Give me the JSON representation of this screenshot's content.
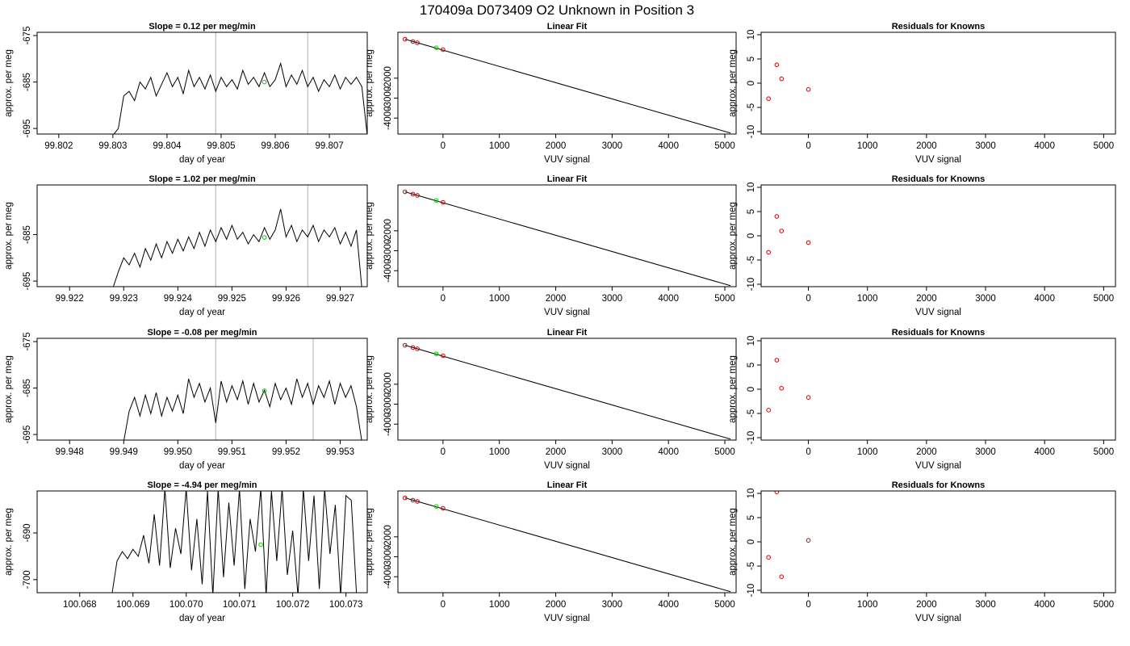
{
  "figure": {
    "title": "170409a      D073409   O2 Unknown in Position  3"
  },
  "chart_data": [
    {
      "type": "line",
      "panel": "time-series-1",
      "title": "Slope =  0.12  per meg/min",
      "xlabel": "day of year",
      "ylabel": "approx. per meg",
      "xlim": [
        99.8016,
        99.8077
      ],
      "ylim": [
        -696.2,
        -674.3
      ],
      "xticks": [
        99.802,
        99.803,
        99.804,
        99.805,
        99.806,
        99.807
      ],
      "xdecimals": 3,
      "yticks": [
        -695,
        -685,
        -675
      ],
      "vlines": [
        99.8049,
        99.8066
      ],
      "series": [
        {
          "x": [
            99.803,
            99.8031,
            99.8032,
            99.8033,
            99.8034,
            99.8035,
            99.8036,
            99.8037,
            99.8038,
            99.8039,
            99.804,
            99.8041,
            99.8042,
            99.8043,
            99.8044,
            99.8045,
            99.8046,
            99.8047,
            99.8048,
            99.8049,
            99.805,
            99.8051,
            99.8052,
            99.8053,
            99.8054,
            99.8055,
            99.8056,
            99.8057,
            99.8058,
            99.8059,
            99.806,
            99.8061,
            99.8062,
            99.8063,
            99.8064,
            99.8065,
            99.8066,
            99.8067,
            99.8068,
            99.8069,
            99.807,
            99.8071,
            99.8072,
            99.8073,
            99.8074,
            99.8075,
            99.8076,
            99.8077
          ],
          "y": [
            -696.5,
            -695.0,
            -688.0,
            -687.0,
            -689.0,
            -685.0,
            -686.5,
            -684.0,
            -688.0,
            -685.5,
            -683.0,
            -686.0,
            -684.0,
            -687.5,
            -682.5,
            -686.0,
            -684.0,
            -686.5,
            -683.5,
            -687.0,
            -684.0,
            -686.0,
            -684.5,
            -686.5,
            -682.5,
            -685.5,
            -684.0,
            -686.0,
            -683.0,
            -686.0,
            -684.5,
            -681.0,
            -686.0,
            -683.5,
            -685.5,
            -682.5,
            -686.0,
            -684.0,
            -687.0,
            -684.5,
            -686.0,
            -683.5,
            -686.5,
            -684.0,
            -685.5,
            -684.0,
            -686.0,
            -696.5
          ]
        }
      ],
      "marker": {
        "x": 99.8058,
        "y": -685.0
      }
    },
    {
      "type": "scatter",
      "panel": "linear-fit-1",
      "title": "Linear Fit",
      "xlabel": "VUV signal",
      "ylabel": "approx. per meg",
      "xlim": [
        -800,
        5200
      ],
      "ylim": [
        -4800,
        300
      ],
      "xticks": [
        0,
        1000,
        2000,
        3000,
        4000,
        5000
      ],
      "yticks": [
        -4000,
        -3000,
        -2000
      ],
      "fit_line": {
        "x": [
          -675,
          5100
        ],
        "y": [
          -45,
          -4750
        ]
      },
      "points": {
        "x": [
          -675,
          -535,
          -455,
          0
        ],
        "y": [
          -45,
          -162,
          -225,
          -570
        ]
      },
      "unknown": {
        "x": [
          -120
        ],
        "y": [
          -475
        ]
      }
    },
    {
      "type": "scatter",
      "panel": "residuals-1",
      "title": "Residuals for Knowns",
      "xlabel": "VUV signal",
      "ylabel": "approx. per meg",
      "xlim": [
        -800,
        5200
      ],
      "ylim": [
        -10.5,
        10.5
      ],
      "xticks": [
        0,
        1000,
        2000,
        3000,
        4000,
        5000
      ],
      "yticks": [
        -10,
        -5,
        0,
        5,
        10
      ],
      "points": {
        "x": [
          -675,
          -535,
          -455,
          0
        ],
        "y": [
          -3.2,
          3.8,
          0.9,
          -1.3
        ]
      }
    },
    {
      "type": "line",
      "panel": "time-series-2",
      "title": "Slope =  1.02  per meg/min",
      "xlabel": "day of year",
      "ylabel": "approx. per meg",
      "xlim": [
        99.9214,
        99.9275
      ],
      "ylim": [
        -696.2,
        -674.3
      ],
      "xticks": [
        99.922,
        99.923,
        99.924,
        99.925,
        99.926,
        99.927
      ],
      "xdecimals": 3,
      "yticks": [
        -695,
        -685
      ],
      "vlines": [
        99.9247,
        99.9264
      ],
      "series": [
        {
          "x": [
            99.9228,
            99.9229,
            99.923,
            99.9231,
            99.9232,
            99.9233,
            99.9234,
            99.9235,
            99.9236,
            99.9237,
            99.9238,
            99.9239,
            99.924,
            99.9241,
            99.9242,
            99.9243,
            99.9244,
            99.9245,
            99.9246,
            99.9247,
            99.9248,
            99.9249,
            99.925,
            99.9251,
            99.9252,
            99.9253,
            99.9254,
            99.9255,
            99.9256,
            99.9257,
            99.9258,
            99.9259,
            99.926,
            99.9261,
            99.9262,
            99.9263,
            99.9264,
            99.9265,
            99.9266,
            99.9267,
            99.9268,
            99.9269,
            99.927,
            99.9271,
            99.9272,
            99.9273,
            99.9274
          ],
          "y": [
            -696.5,
            -693.0,
            -690.0,
            -691.5,
            -689.0,
            -692.0,
            -688.0,
            -690.5,
            -687.0,
            -690.0,
            -686.5,
            -689.0,
            -686.0,
            -688.5,
            -685.5,
            -688.0,
            -684.5,
            -687.5,
            -684.0,
            -686.5,
            -683.5,
            -686.0,
            -683.0,
            -686.0,
            -684.5,
            -687.0,
            -685.0,
            -686.5,
            -683.5,
            -686.0,
            -684.0,
            -679.5,
            -685.5,
            -683.0,
            -686.5,
            -684.0,
            -685.5,
            -683.0,
            -686.5,
            -684.0,
            -685.5,
            -683.5,
            -687.0,
            -684.5,
            -687.5,
            -684.0,
            -696.5
          ]
        }
      ],
      "marker": {
        "x": 99.9256,
        "y": -685.6
      }
    },
    {
      "type": "scatter",
      "panel": "linear-fit-2",
      "title": "Linear Fit",
      "xlabel": "VUV signal",
      "ylabel": "approx. per meg",
      "xlim": [
        -800,
        5200
      ],
      "ylim": [
        -4800,
        300
      ],
      "xticks": [
        0,
        1000,
        2000,
        3000,
        4000,
        5000
      ],
      "yticks": [
        -4000,
        -3000,
        -2000
      ],
      "fit_line": {
        "x": [
          -675,
          5100
        ],
        "y": [
          -45,
          -4750
        ]
      },
      "points": {
        "x": [
          -675,
          -535,
          -455,
          0
        ],
        "y": [
          -45,
          -162,
          -225,
          -570
        ]
      },
      "unknown": {
        "x": [
          -120
        ],
        "y": [
          -475
        ]
      }
    },
    {
      "type": "scatter",
      "panel": "residuals-2",
      "title": "Residuals for Knowns",
      "xlabel": "VUV signal",
      "ylabel": "approx. per meg",
      "xlim": [
        -800,
        5200
      ],
      "ylim": [
        -10.5,
        10.5
      ],
      "xticks": [
        0,
        1000,
        2000,
        3000,
        4000,
        5000
      ],
      "yticks": [
        -10,
        -5,
        0,
        5,
        10
      ],
      "points": {
        "x": [
          -675,
          -535,
          -455,
          0
        ],
        "y": [
          -3.4,
          4.0,
          1.0,
          -1.4
        ]
      }
    },
    {
      "type": "line",
      "panel": "time-series-3",
      "title": "Slope =  -0.08  per meg/min",
      "xlabel": "day of year",
      "ylabel": "approx. per meg",
      "xlim": [
        99.9474,
        99.9535
      ],
      "ylim": [
        -696.2,
        -674.3
      ],
      "xticks": [
        99.948,
        99.949,
        99.95,
        99.951,
        99.952,
        99.953
      ],
      "xdecimals": 3,
      "yticks": [
        -695,
        -685,
        -675
      ],
      "vlines": [
        99.9507,
        99.9525
      ],
      "series": [
        {
          "x": [
            99.949,
            99.9491,
            99.9492,
            99.9493,
            99.9494,
            99.9495,
            99.9496,
            99.9497,
            99.9498,
            99.9499,
            99.95,
            99.9501,
            99.9502,
            99.9503,
            99.9504,
            99.9505,
            99.9506,
            99.9507,
            99.9508,
            99.9509,
            99.951,
            99.9511,
            99.9512,
            99.9513,
            99.9514,
            99.9515,
            99.9516,
            99.9517,
            99.9518,
            99.9519,
            99.952,
            99.9521,
            99.9522,
            99.9523,
            99.9524,
            99.9525,
            99.9526,
            99.9527,
            99.9528,
            99.9529,
            99.953,
            99.9531,
            99.9532,
            99.9533,
            99.9534
          ],
          "y": [
            -696.5,
            -690.0,
            -687.0,
            -691.0,
            -686.5,
            -690.5,
            -686.0,
            -691.0,
            -687.0,
            -690.0,
            -686.5,
            -690.5,
            -683.0,
            -687.0,
            -684.0,
            -688.0,
            -685.0,
            -692.5,
            -683.5,
            -688.0,
            -684.5,
            -687.5,
            -683.5,
            -688.5,
            -684.0,
            -688.0,
            -685.5,
            -689.0,
            -684.0,
            -687.5,
            -685.0,
            -688.5,
            -683.0,
            -687.0,
            -684.0,
            -688.5,
            -684.5,
            -687.0,
            -683.5,
            -688.5,
            -684.0,
            -687.0,
            -684.5,
            -689.0,
            -696.5
          ]
        }
      ],
      "marker": {
        "x": 99.9516,
        "y": -685.6
      }
    },
    {
      "type": "scatter",
      "panel": "linear-fit-3",
      "title": "Linear Fit",
      "xlabel": "VUV signal",
      "ylabel": "approx. per meg",
      "xlim": [
        -800,
        5200
      ],
      "ylim": [
        -4800,
        300
      ],
      "xticks": [
        0,
        1000,
        2000,
        3000,
        4000,
        5000
      ],
      "yticks": [
        -4000,
        -3000,
        -2000
      ],
      "fit_line": {
        "x": [
          -675,
          5100
        ],
        "y": [
          -45,
          -4750
        ]
      },
      "points": {
        "x": [
          -675,
          -535,
          -455,
          0
        ],
        "y": [
          -45,
          -162,
          -225,
          -570
        ]
      },
      "unknown": {
        "x": [
          -120
        ],
        "y": [
          -475
        ]
      }
    },
    {
      "type": "scatter",
      "panel": "residuals-3",
      "title": "Residuals for Knowns",
      "xlabel": "VUV signal",
      "ylabel": "approx. per meg",
      "xlim": [
        -800,
        5200
      ],
      "ylim": [
        -10.5,
        10.5
      ],
      "xticks": [
        0,
        1000,
        2000,
        3000,
        4000,
        5000
      ],
      "yticks": [
        -10,
        -5,
        0,
        5,
        10
      ],
      "points": {
        "x": [
          -675,
          -535,
          -455,
          0
        ],
        "y": [
          -4.3,
          6.0,
          0.2,
          -1.7
        ]
      }
    },
    {
      "type": "line",
      "panel": "time-series-4",
      "title": "Slope =  -4.94  per meg/min",
      "xlabel": "day of year",
      "ylabel": "approx. per meg",
      "xlim": [
        100.0672,
        100.0734
      ],
      "ylim": [
        -702.8,
        -681.0
      ],
      "xticks": [
        100.068,
        100.069,
        100.07,
        100.071,
        100.072,
        100.073
      ],
      "xdecimals": 3,
      "yticks": [
        -700,
        -690
      ],
      "series": [
        {
          "x": [
            100.0686,
            100.0687,
            100.0688,
            100.0689,
            100.069,
            100.0691,
            100.0692,
            100.0693,
            100.0694,
            100.0695,
            100.0696,
            100.0697,
            100.0698,
            100.0699,
            100.07,
            100.0701,
            100.0702,
            100.0703,
            100.0704,
            100.0705,
            100.0706,
            100.0707,
            100.0708,
            100.0709,
            100.071,
            100.0711,
            100.0712,
            100.0713,
            100.0714,
            100.0715,
            100.0716,
            100.0717,
            100.0718,
            100.0719,
            100.072,
            100.0721,
            100.0722,
            100.0723,
            100.0724,
            100.0725,
            100.0726,
            100.0727,
            100.0728,
            100.0729,
            100.073,
            100.0731,
            100.0732
          ],
          "y": [
            -703.5,
            -696.0,
            -694.0,
            -695.5,
            -693.5,
            -695.0,
            -690.5,
            -696.5,
            -686.0,
            -697.0,
            -680.5,
            -697.5,
            -689.0,
            -694.5,
            -680.5,
            -698.0,
            -687.0,
            -701.0,
            -681.0,
            -703.5,
            -680.5,
            -699.5,
            -683.5,
            -697.0,
            -680.5,
            -702.0,
            -687.0,
            -694.0,
            -680.5,
            -703.5,
            -681.0,
            -696.0,
            -680.5,
            -699.0,
            -689.5,
            -703.5,
            -680.5,
            -696.0,
            -682.0,
            -702.0,
            -680.5,
            -694.5,
            -684.0,
            -703.5,
            -682.0,
            -683.0,
            -703.5
          ]
        }
      ],
      "marker": {
        "x": 100.0714,
        "y": -692.5
      }
    },
    {
      "type": "scatter",
      "panel": "linear-fit-4",
      "title": "Linear Fit",
      "xlabel": "VUV signal",
      "ylabel": "approx. per meg",
      "xlim": [
        -800,
        5200
      ],
      "ylim": [
        -4800,
        300
      ],
      "xticks": [
        0,
        1000,
        2000,
        3000,
        4000,
        5000
      ],
      "yticks": [
        -4000,
        -3000,
        -2000
      ],
      "fit_line": {
        "x": [
          -675,
          5100
        ],
        "y": [
          -45,
          -4750
        ]
      },
      "points": {
        "x": [
          -675,
          -535,
          -455,
          0
        ],
        "y": [
          -45,
          -162,
          -225,
          -570
        ]
      },
      "unknown": {
        "x": [
          -120
        ],
        "y": [
          -475
        ]
      }
    },
    {
      "type": "scatter",
      "panel": "residuals-4",
      "title": "Residuals for Knowns",
      "xlabel": "VUV signal",
      "ylabel": "approx. per meg",
      "xlim": [
        -800,
        5200
      ],
      "ylim": [
        -10.5,
        10.5
      ],
      "xticks": [
        0,
        1000,
        2000,
        3000,
        4000,
        5000
      ],
      "yticks": [
        -10,
        -5,
        0,
        5,
        10
      ],
      "points": {
        "x": [
          -675,
          -535,
          -455,
          0
        ],
        "y": [
          -3.2,
          10.3,
          -7.2,
          0.3
        ]
      }
    }
  ],
  "style": {
    "line_color": "#000000",
    "point_color": "#cc0000",
    "unknown_color": "#00cc00",
    "vline_color": "#bbbbbb",
    "frame_color": "#000000",
    "background": "#ffffff"
  }
}
